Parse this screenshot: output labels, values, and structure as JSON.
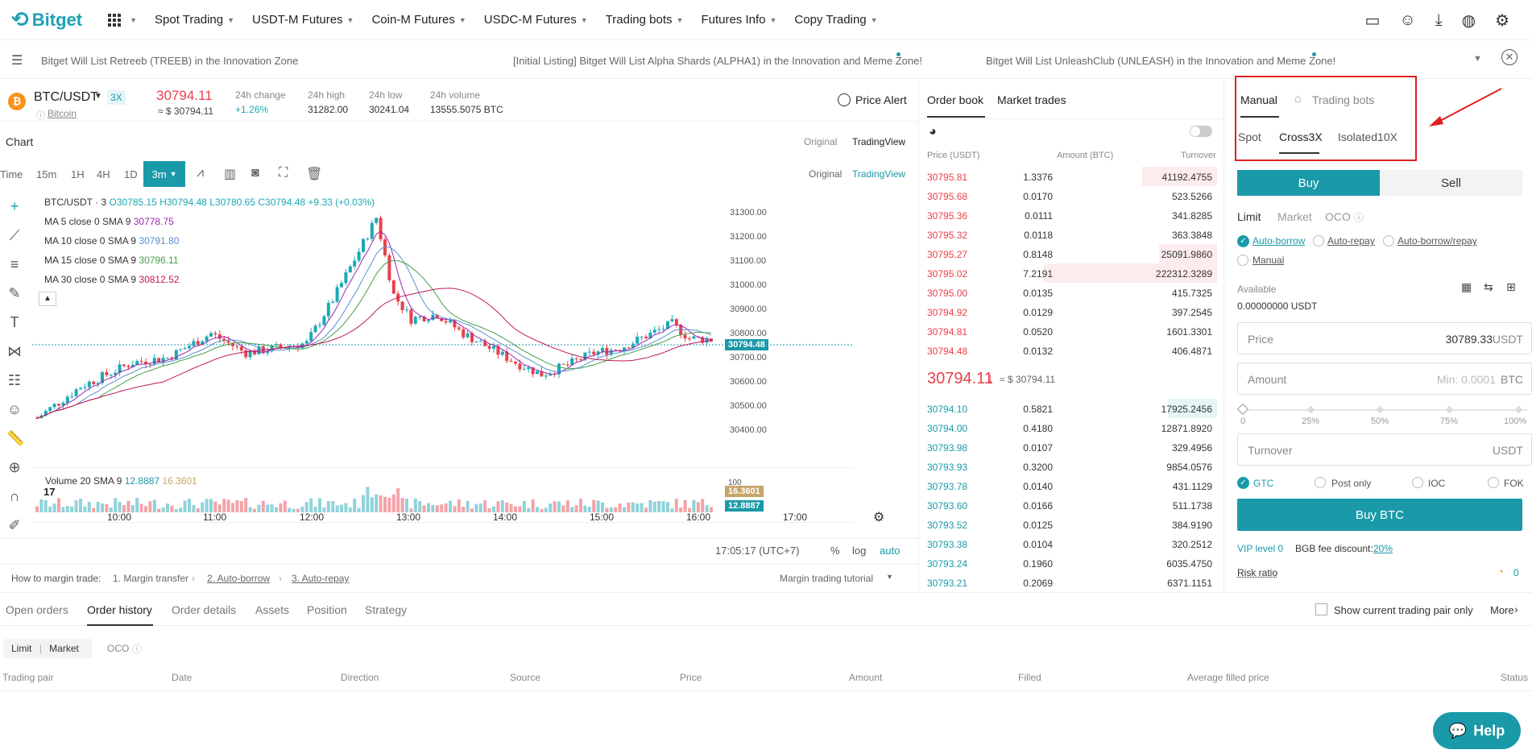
{
  "nav": {
    "brand": "Bitget",
    "items": [
      "Spot Trading",
      "USDT-M Futures",
      "Coin-M Futures",
      "USDC-M Futures",
      "Trading bots",
      "Futures Info",
      "Copy Trading"
    ]
  },
  "ticker": {
    "items": [
      "Bitget Will List Retreeb (TREEB) in the Innovation Zone",
      "[Initial Listing] Bitget Will List Alpha Shards (ALPHA1) in the Innovation and Meme Zone!",
      "Bitget Will List UnleashClub (UNLEASH) in the Innovation and Meme Zone!"
    ]
  },
  "pair": {
    "symbol": "BTC/USDT",
    "leverage": "3X",
    "coin_name": "Bitcoin",
    "price": "30794.11",
    "price_usd": "≈ $ 30794.11",
    "stats": [
      {
        "label": "24h change",
        "value": "+1.26%"
      },
      {
        "label": "24h high",
        "value": "31282.00"
      },
      {
        "label": "24h low",
        "value": "30241.04"
      },
      {
        "label": "24h volume",
        "value": "13555.5075 BTC"
      }
    ],
    "price_alert": "Price Alert"
  },
  "chart": {
    "heading": "Chart",
    "view_original": "Original",
    "view_tradingview": "TradingView",
    "intervals": [
      "Time",
      "15m",
      "1H",
      "4H",
      "1D",
      "3m"
    ],
    "active_interval": "3m",
    "ohlc": {
      "title": "BTC/USDT · 3",
      "o": "30785.15",
      "h": "30794.48",
      "l": "30780.65",
      "c": "30794.48",
      "chg": "+9.33 (+0.03%)"
    },
    "ma_legends": [
      {
        "label": "MA 5 close 0 SMA 9",
        "value": "30778.75",
        "color": "#9c27b0"
      },
      {
        "label": "MA 10 close 0 SMA 9",
        "value": "30791.80",
        "color": "#5b8fd1"
      },
      {
        "label": "MA 15 close 0 SMA 9",
        "value": "30796.11",
        "color": "#43a047"
      },
      {
        "label": "MA 30 close 0 SMA 9",
        "value": "30812.52",
        "color": "#c2185b"
      }
    ],
    "y_ticks": [
      "31300.00",
      "31200.00",
      "31100.00",
      "31000.00",
      "30900.00",
      "30800.00",
      "30700.00",
      "30600.00",
      "30500.00",
      "30400.00"
    ],
    "last_price_tag": "30794.48",
    "volume_label": "Volume 20 SMA 9",
    "volume_v1": "12.8887",
    "volume_v2": "16.3601",
    "volume_tag1": "16.3601",
    "volume_tag2": "12.8887",
    "volume_tick": "100",
    "x_ticks": [
      "10:00",
      "11:00",
      "12:00",
      "13:00",
      "14:00",
      "15:00",
      "16:00",
      "17:00"
    ],
    "clock": "17:05:17 (UTC+7)",
    "scale_opts": [
      "%",
      "log",
      "auto"
    ]
  },
  "margin_help": {
    "label": "How to margin trade:",
    "steps": [
      "1. Margin transfer",
      "2. Auto-borrow",
      "3. Auto-repay"
    ],
    "tutorial": "Margin trading tutorial"
  },
  "orderbook": {
    "tabs": [
      "Order book",
      "Market trades"
    ],
    "headers": [
      "Price (USDT)",
      "Amount (BTC)",
      "Turnover"
    ],
    "asks": [
      [
        "30795.81",
        "1.3376",
        "41192.4755"
      ],
      [
        "30795.68",
        "0.0170",
        "523.5266"
      ],
      [
        "30795.36",
        "0.0111",
        "341.8285"
      ],
      [
        "30795.32",
        "0.0118",
        "363.3848"
      ],
      [
        "30795.27",
        "0.8148",
        "25091.9860"
      ],
      [
        "30795.02",
        "7.2191",
        "222312.3289"
      ],
      [
        "30795.00",
        "0.0135",
        "415.7325"
      ],
      [
        "30794.92",
        "0.0129",
        "397.2545"
      ],
      [
        "30794.81",
        "0.0520",
        "1601.3301"
      ],
      [
        "30794.48",
        "0.0132",
        "406.4871"
      ]
    ],
    "mid_price": "30794.11",
    "mid_usd": "≈ $ 30794.11",
    "bids": [
      [
        "30794.10",
        "0.5821",
        "17925.2456"
      ],
      [
        "30794.00",
        "0.4180",
        "12871.8920"
      ],
      [
        "30793.98",
        "0.0107",
        "329.4956"
      ],
      [
        "30793.93",
        "0.3200",
        "9854.0576"
      ],
      [
        "30793.78",
        "0.0140",
        "431.1129"
      ],
      [
        "30793.60",
        "0.0166",
        "511.1738"
      ],
      [
        "30793.52",
        "0.0125",
        "384.9190"
      ],
      [
        "30793.38",
        "0.0104",
        "320.2512"
      ],
      [
        "30793.24",
        "0.1960",
        "6035.4750"
      ],
      [
        "30793.21",
        "0.2069",
        "6371.1151"
      ]
    ]
  },
  "trade": {
    "mode_tabs": [
      "Manual",
      "Trading bots"
    ],
    "margin_tabs": [
      "Spot",
      "Cross3X",
      "Isolated10X"
    ],
    "buy": "Buy",
    "sell": "Sell",
    "order_types": [
      "Limit",
      "Market",
      "OCO"
    ],
    "borrow_opts": [
      "Auto-borrow",
      "Auto-repay",
      "Auto-borrow/repay",
      "Manual"
    ],
    "available_label": "Available",
    "available_value": "0.00000000 USDT",
    "price_label": "Price",
    "price_value": "30789.33",
    "price_unit": "USDT",
    "amount_label": "Amount",
    "amount_placeholder": "Min: 0.0001",
    "amount_unit": "BTC",
    "slider_marks": [
      "0",
      "25%",
      "50%",
      "75%",
      "100%"
    ],
    "turnover_label": "Turnover",
    "turnover_unit": "USDT",
    "tif_opts": [
      "GTC",
      "Post only",
      "IOC",
      "FOK"
    ],
    "submit": "Buy BTC",
    "vip": "VIP level 0",
    "bgb_label": "BGB fee discount:",
    "bgb_value": "20%",
    "risk_label": "Risk ratio",
    "risk_value": "0"
  },
  "bottom": {
    "tabs": [
      "Open orders",
      "Order history",
      "Order details",
      "Assets",
      "Position",
      "Strategy"
    ],
    "active_tab": "Order history",
    "show_current": "Show current trading pair only",
    "more": "More",
    "order_types": [
      "Limit",
      "Market",
      "OCO"
    ],
    "columns": [
      "Trading pair",
      "Date",
      "Direction",
      "Source",
      "Price",
      "Amount",
      "Filled",
      "Average filled price",
      "Status"
    ]
  },
  "help": "Help",
  "colors": {
    "accent": "#1a9aa9",
    "up": "#1ba9b5",
    "down": "#e8414b",
    "annotation": "#e02020"
  }
}
